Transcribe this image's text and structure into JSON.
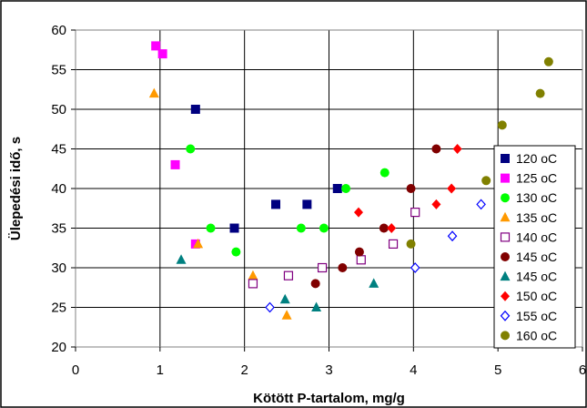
{
  "chart_data": {
    "type": "scatter",
    "title": "",
    "xlabel": "Kötött P-tartalom, mg/g",
    "ylabel": "Ülepedési idő, s",
    "xlim": [
      0,
      6
    ],
    "ylim": [
      20,
      60
    ],
    "xticks": [
      "0",
      "1",
      "2",
      "3",
      "4",
      "5",
      "6"
    ],
    "yticks": [
      "20",
      "25",
      "30",
      "35",
      "40",
      "45",
      "50",
      "55",
      "60"
    ],
    "grid": true,
    "legend_position": "right",
    "series": [
      {
        "name": "120 oC",
        "marker": "square",
        "color": "#000080",
        "points": [
          [
            1.42,
            50
          ],
          [
            1.88,
            35
          ],
          [
            2.37,
            38
          ],
          [
            2.74,
            38
          ],
          [
            3.1,
            40
          ]
        ]
      },
      {
        "name": "125 oC",
        "marker": "square",
        "color": "#ff00ff",
        "points": [
          [
            0.95,
            58
          ],
          [
            1.03,
            57
          ],
          [
            1.18,
            43
          ],
          [
            1.42,
            33
          ]
        ]
      },
      {
        "name": "130 oC",
        "marker": "circle",
        "color": "#00ff00",
        "points": [
          [
            1.36,
            45
          ],
          [
            1.6,
            35
          ],
          [
            1.9,
            32
          ],
          [
            2.67,
            35
          ],
          [
            2.94,
            35
          ],
          [
            3.2,
            40
          ],
          [
            3.66,
            42
          ]
        ]
      },
      {
        "name": "135 oC",
        "marker": "triangle",
        "color": "#ff9900",
        "points": [
          [
            0.93,
            52
          ],
          [
            1.45,
            33
          ],
          [
            2.1,
            29
          ],
          [
            2.5,
            24
          ]
        ]
      },
      {
        "name": "140 oC",
        "marker": "square-open",
        "color": "#800080",
        "points": [
          [
            2.1,
            28
          ],
          [
            2.52,
            29
          ],
          [
            2.92,
            30
          ],
          [
            3.38,
            31
          ],
          [
            3.76,
            33
          ],
          [
            4.02,
            37
          ]
        ]
      },
      {
        "name": "145 oC",
        "marker": "circle",
        "color": "#800000",
        "points": [
          [
            2.84,
            28
          ],
          [
            3.16,
            30
          ],
          [
            3.36,
            32
          ],
          [
            3.65,
            35
          ],
          [
            3.97,
            40
          ],
          [
            4.27,
            45
          ]
        ]
      },
      {
        "name": "145 oC",
        "marker": "triangle",
        "color": "#008080",
        "points": [
          [
            1.25,
            31
          ],
          [
            2.48,
            26
          ],
          [
            2.85,
            25
          ],
          [
            3.53,
            28
          ]
        ]
      },
      {
        "name": "150 oC",
        "marker": "diamond",
        "color": "#ff0000",
        "points": [
          [
            3.35,
            37
          ],
          [
            3.74,
            35
          ],
          [
            4.27,
            38
          ],
          [
            4.45,
            40
          ],
          [
            4.52,
            45
          ]
        ]
      },
      {
        "name": "155 oC",
        "marker": "diamond-open",
        "color": "#0000ff",
        "points": [
          [
            2.3,
            25
          ],
          [
            4.02,
            30
          ],
          [
            4.46,
            34
          ],
          [
            4.8,
            38
          ]
        ]
      },
      {
        "name": "160 oC",
        "marker": "circle",
        "color": "#808000",
        "points": [
          [
            3.97,
            33
          ],
          [
            4.86,
            41
          ],
          [
            5.05,
            48
          ],
          [
            5.5,
            52
          ],
          [
            5.6,
            56
          ]
        ]
      }
    ]
  }
}
